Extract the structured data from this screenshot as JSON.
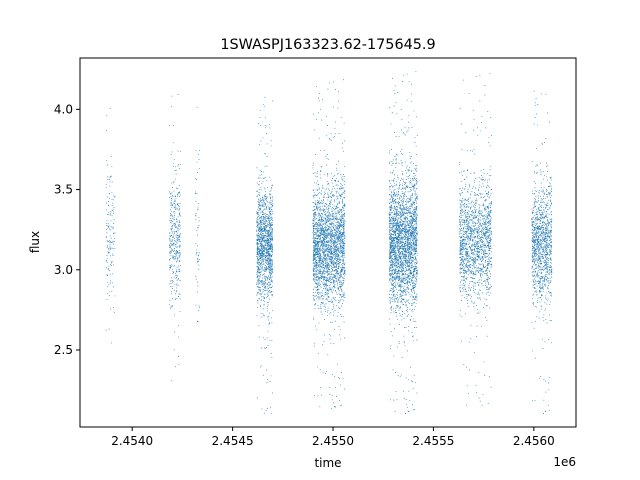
{
  "chart_data": {
    "type": "scatter",
    "title": "1SWASPJ163323.62-175645.9",
    "xlabel": "time",
    "ylabel": "flux",
    "x_offset_label": "1e6",
    "xlim": [
      2453740,
      2456210
    ],
    "ylim": [
      2.02,
      4.32
    ],
    "x_ticks": [
      {
        "value": 2454000,
        "label": "2.4540"
      },
      {
        "value": 2454500,
        "label": "2.4545"
      },
      {
        "value": 2455000,
        "label": "2.4550"
      },
      {
        "value": 2455500,
        "label": "2.4555"
      },
      {
        "value": 2456000,
        "label": "2.4560"
      }
    ],
    "y_ticks": [
      {
        "value": 2.5,
        "label": "2.5"
      },
      {
        "value": 3.0,
        "label": "3.0"
      },
      {
        "value": 3.5,
        "label": "3.5"
      },
      {
        "value": 4.0,
        "label": "4.0"
      }
    ],
    "grid": false,
    "marker_color": "#1f77b4",
    "series": [
      {
        "points_summary": "dense observing seasons of flux measurements",
        "seasons": [
          {
            "x_start": 2453870,
            "x_end": 2453915,
            "center": 3.2,
            "spread": 0.25,
            "y_min": 2.46,
            "y_max": 4.13,
            "density": 150
          },
          {
            "x_start": 2454185,
            "x_end": 2454240,
            "center": 3.18,
            "spread": 0.2,
            "y_min": 2.24,
            "y_max": 4.14,
            "density": 400
          },
          {
            "x_start": 2454315,
            "x_end": 2454335,
            "center": 3.2,
            "spread": 0.25,
            "y_min": 2.55,
            "y_max": 4.18,
            "density": 60
          },
          {
            "x_start": 2454620,
            "x_end": 2454700,
            "center": 3.15,
            "spread": 0.17,
            "y_min": 2.1,
            "y_max": 4.08,
            "density": 1400
          },
          {
            "x_start": 2454900,
            "x_end": 2455060,
            "center": 3.15,
            "spread": 0.18,
            "y_min": 2.11,
            "y_max": 4.19,
            "density": 2600
          },
          {
            "x_start": 2455280,
            "x_end": 2455420,
            "center": 3.17,
            "spread": 0.2,
            "y_min": 2.08,
            "y_max": 4.24,
            "density": 2800
          },
          {
            "x_start": 2455630,
            "x_end": 2455790,
            "center": 3.18,
            "spread": 0.17,
            "y_min": 2.12,
            "y_max": 4.23,
            "density": 1600
          },
          {
            "x_start": 2455990,
            "x_end": 2456090,
            "center": 3.16,
            "spread": 0.18,
            "y_min": 2.08,
            "y_max": 4.16,
            "density": 1200
          }
        ]
      }
    ]
  }
}
